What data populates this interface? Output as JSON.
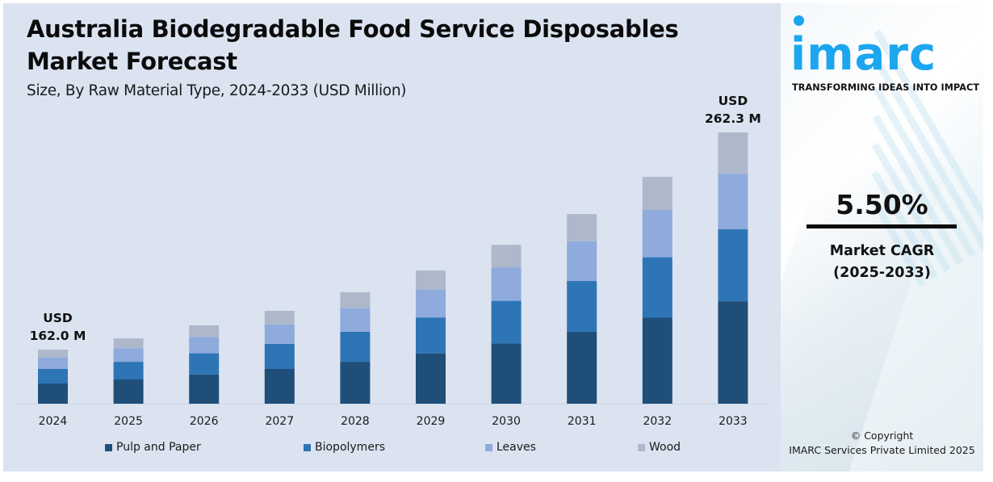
{
  "header": {
    "title": "Australia Biodegradable Food Service Disposables Market Forecast",
    "subtitle": "Size, By Raw Material Type, 2024-2033 (USD Million)"
  },
  "brand": {
    "logo_text": "imarc",
    "tagline": "TRANSFORMING IDEAS INTO IMPACT",
    "logo_color": "#1ba6ef"
  },
  "cagr": {
    "value": "5.50%",
    "label_line1": "Market CAGR",
    "label_line2": "(2025-2033)"
  },
  "footer": {
    "copyright_line1": "© Copyright",
    "copyright_line2": "IMARC Services Private Limited 2025"
  },
  "chart_data": {
    "type": "bar",
    "stacked": true,
    "title": "Australia Biodegradable Food Service Disposables Market Forecast",
    "subtitle": "Size, By Raw Material Type, 2024-2033 (USD Million)",
    "xlabel": "",
    "ylabel": "USD Million",
    "grid": false,
    "legend_position": "bottom",
    "categories": [
      "2024",
      "2025",
      "2026",
      "2027",
      "2028",
      "2029",
      "2030",
      "2031",
      "2032",
      "2033"
    ],
    "totals": [
      162.0,
      167.2,
      173.2,
      179.9,
      188.5,
      198.5,
      210.4,
      224.6,
      241.8,
      262.3
    ],
    "series": [
      {
        "name": "Pulp and Paper",
        "color": "#1f4e79",
        "values": [
          60.4,
          62.0,
          64.3,
          67.2,
          70.8,
          75.0,
          79.7,
          85.2,
          91.6,
          99.1
        ]
      },
      {
        "name": "Biopolymers",
        "color": "#2e75b6",
        "values": [
          43.5,
          45.3,
          47.0,
          48.8,
          51.0,
          53.6,
          56.5,
          60.1,
          64.5,
          69.5
        ]
      },
      {
        "name": "Leaves",
        "color": "#8faadc",
        "values": [
          33.9,
          34.9,
          36.5,
          37.6,
          39.7,
          41.6,
          44.4,
          47.1,
          50.5,
          53.8
        ]
      },
      {
        "name": "Wood",
        "color": "#adb9ca",
        "values": [
          24.2,
          25.0,
          25.4,
          26.3,
          27.0,
          28.3,
          29.8,
          32.2,
          35.2,
          39.9
        ]
      }
    ],
    "annotations": [
      {
        "category": "2024",
        "line1": "USD",
        "line2": "162.0 M"
      },
      {
        "category": "2033",
        "line1": "USD",
        "line2": "262.3 M"
      }
    ]
  }
}
